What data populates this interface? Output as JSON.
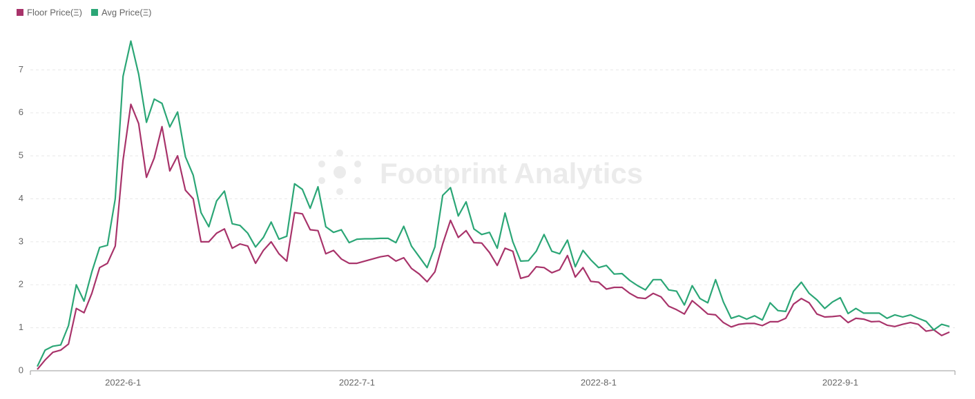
{
  "chart_data": {
    "type": "line",
    "watermark": "Footprint Analytics",
    "legend": "top-left",
    "grid": true,
    "categories": [
      null,
      null,
      null,
      null,
      null,
      null,
      null,
      null,
      null,
      null,
      null,
      "2022-6-1",
      null,
      null,
      null,
      null,
      null,
      null,
      null,
      null,
      null,
      null,
      null,
      null,
      null,
      null,
      null,
      null,
      null,
      null,
      null,
      null,
      null,
      null,
      null,
      null,
      null,
      null,
      null,
      null,
      null,
      "2022-7-1",
      null,
      null,
      null,
      null,
      null,
      null,
      null,
      null,
      null,
      null,
      null,
      null,
      null,
      null,
      null,
      null,
      null,
      null,
      null,
      null,
      null,
      null,
      null,
      null,
      null,
      null,
      null,
      null,
      null,
      null,
      "2022-8-1",
      null,
      null,
      null,
      null,
      null,
      null,
      null,
      null,
      null,
      null,
      null,
      null,
      null,
      null,
      null,
      null,
      null,
      null,
      null,
      null,
      null,
      null,
      null,
      null,
      null,
      null,
      null,
      null,
      null,
      null,
      "2022-9-1",
      null,
      null,
      null,
      null,
      null,
      null,
      null,
      null,
      null,
      null,
      null,
      null,
      null,
      null
    ],
    "series": [
      {
        "name": "Floor Price(Ξ)",
        "color": "#a8336a",
        "values": [
          0.03,
          0.25,
          0.43,
          0.48,
          0.62,
          1.45,
          1.35,
          1.8,
          2.4,
          2.5,
          2.9,
          4.9,
          6.2,
          5.75,
          4.5,
          4.95,
          5.68,
          4.65,
          5.0,
          4.2,
          4.0,
          3.0,
          3.0,
          3.2,
          3.3,
          2.85,
          2.95,
          2.9,
          2.5,
          2.8,
          3.0,
          2.72,
          2.55,
          3.68,
          3.65,
          3.28,
          3.26,
          2.72,
          2.8,
          2.6,
          2.5,
          2.5,
          2.55,
          2.6,
          2.65,
          2.68,
          2.55,
          2.63,
          2.38,
          2.25,
          2.07,
          2.3,
          2.95,
          3.5,
          3.1,
          3.26,
          2.98,
          2.97,
          2.75,
          2.45,
          2.85,
          2.78,
          2.15,
          2.2,
          2.42,
          2.4,
          2.28,
          2.35,
          2.68,
          2.18,
          2.4,
          2.08,
          2.06,
          1.9,
          1.94,
          1.94,
          1.8,
          1.7,
          1.68,
          1.8,
          1.72,
          1.5,
          1.42,
          1.32,
          1.63,
          1.48,
          1.32,
          1.3,
          1.12,
          1.02,
          1.08,
          1.1,
          1.1,
          1.05,
          1.14,
          1.14,
          1.22,
          1.55,
          1.68,
          1.58,
          1.32,
          1.25,
          1.26,
          1.28,
          1.12,
          1.22,
          1.2,
          1.14,
          1.15,
          1.06,
          1.03,
          1.08,
          1.12,
          1.08,
          0.92,
          0.95,
          0.82,
          0.9
        ]
      },
      {
        "name": "Avg Price(Ξ)",
        "color": "#2ba676",
        "values": [
          0.1,
          0.48,
          0.57,
          0.6,
          1.05,
          2.0,
          1.62,
          2.3,
          2.87,
          2.92,
          4.0,
          6.85,
          7.67,
          6.9,
          5.78,
          6.32,
          6.22,
          5.67,
          6.02,
          4.98,
          4.55,
          3.68,
          3.35,
          3.95,
          4.18,
          3.42,
          3.38,
          3.2,
          2.88,
          3.1,
          3.46,
          3.06,
          3.13,
          4.35,
          4.22,
          3.78,
          4.28,
          3.35,
          3.22,
          3.28,
          2.98,
          3.06,
          3.07,
          3.07,
          3.08,
          3.08,
          2.98,
          3.36,
          2.9,
          2.65,
          2.4,
          2.88,
          4.08,
          4.26,
          3.6,
          3.93,
          3.3,
          3.17,
          3.22,
          2.85,
          3.67,
          3.0,
          2.55,
          2.56,
          2.78,
          3.17,
          2.78,
          2.72,
          3.04,
          2.42,
          2.8,
          2.58,
          2.4,
          2.45,
          2.25,
          2.26,
          2.1,
          1.98,
          1.88,
          2.12,
          2.12,
          1.88,
          1.85,
          1.53,
          1.98,
          1.68,
          1.58,
          2.12,
          1.6,
          1.22,
          1.28,
          1.2,
          1.28,
          1.18,
          1.58,
          1.4,
          1.38,
          1.85,
          2.06,
          1.8,
          1.65,
          1.45,
          1.6,
          1.7,
          1.33,
          1.45,
          1.34,
          1.34,
          1.34,
          1.22,
          1.3,
          1.25,
          1.3,
          1.22,
          1.15,
          0.95,
          1.08,
          1.03
        ]
      }
    ],
    "ylim": [
      0,
      8
    ],
    "yticks": [
      0,
      1,
      2,
      3,
      4,
      5,
      6,
      7
    ]
  }
}
